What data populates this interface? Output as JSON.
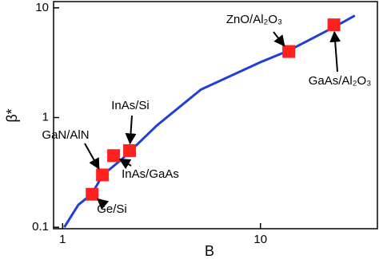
{
  "chart_data": {
    "type": "scatter",
    "x_label": "B",
    "y_label": "β*",
    "xscale": "log",
    "yscale": "log",
    "xlim": [
      0.9,
      39
    ],
    "ylim": [
      0.097,
      11.4
    ],
    "xticks": [
      1,
      10
    ],
    "yticks": [
      0.1,
      1,
      10
    ],
    "curve": {
      "color": "#1f3fd6",
      "x": [
        1.02,
        1.2,
        1.4,
        1.6,
        2,
        3,
        5,
        10,
        14,
        24,
        30
      ],
      "y": [
        0.1,
        0.16,
        0.2,
        0.3,
        0.42,
        0.85,
        1.8,
        3.2,
        4.1,
        6.8,
        8.5
      ]
    },
    "series": [
      {
        "color": "#ff2020",
        "labels": [
          "Ge/Si",
          "GaN/AlN",
          "InAs/GaAs",
          "InAs/Si",
          "ZnO/Al₂O₃",
          "GaAs/Al₂O₃"
        ],
        "x": [
          1.41,
          1.59,
          1.81,
          2.18,
          13.9,
          23.5
        ],
        "values": [
          0.2,
          0.3,
          0.45,
          0.5,
          4,
          7
        ]
      }
    ]
  }
}
